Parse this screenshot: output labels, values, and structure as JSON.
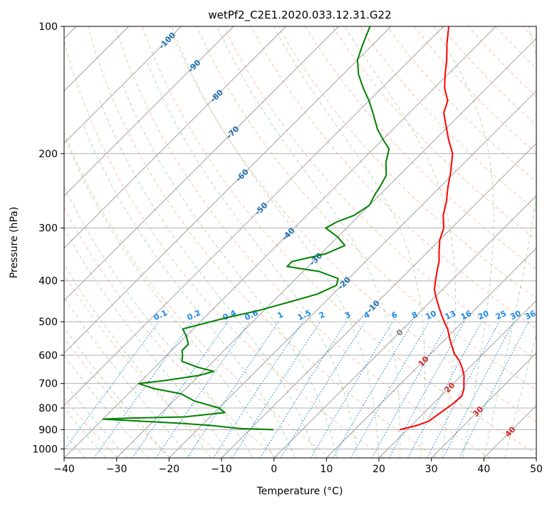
{
  "chart_data": {
    "type": "skew-t",
    "title": "wetPf2_C2E1.2020.033.12.31.G22",
    "xlabel": "Temperature (°C)",
    "ylabel": "Pressure (hPa)",
    "xlim": [
      -40,
      50
    ],
    "ylim": [
      1050,
      100
    ],
    "y_scale": "log",
    "x_ticks": [
      "−40",
      "−30",
      "−20",
      "−10",
      "0",
      "10",
      "20",
      "30",
      "40",
      "50"
    ],
    "y_ticks": [
      "100",
      "200",
      "300",
      "400",
      "500",
      "600",
      "700",
      "800",
      "900",
      "1000"
    ],
    "grid": true,
    "colors": {
      "temperature": "#ff0000",
      "dewpoint": "#008000",
      "isotherm": "#999999",
      "dry_adiabat": "#ff8a65",
      "moist_adiabat": "#66bb6a",
      "mixing_ratio": "#1e88e5",
      "label_isotherm_cold": "#1f6fb0",
      "label_isotherm_zero": "#7f7f7f",
      "label_isotherm_warm": "#d62728"
    },
    "series": [
      {
        "name": "",
        "role": "temperature",
        "points": [
          [
            900,
            18.6
          ],
          [
            880,
            21.0
          ],
          [
            860,
            22.5
          ],
          [
            840,
            22.8
          ],
          [
            810,
            23.3
          ],
          [
            780,
            23.8
          ],
          [
            750,
            24.0
          ],
          [
            720,
            23.0
          ],
          [
            700,
            22.0
          ],
          [
            670,
            20.5
          ],
          [
            640,
            18.5
          ],
          [
            615,
            16.5
          ],
          [
            595,
            14.5
          ],
          [
            570,
            12.5
          ],
          [
            545,
            10.5
          ],
          [
            520,
            8.5
          ],
          [
            500,
            6.5
          ],
          [
            480,
            4.5
          ],
          [
            460,
            2.5
          ],
          [
            440,
            0.5
          ],
          [
            420,
            -1.5
          ],
          [
            400,
            -3.0
          ],
          [
            380,
            -4.5
          ],
          [
            360,
            -6.0
          ],
          [
            340,
            -8.0
          ],
          [
            320,
            -10.0
          ],
          [
            300,
            -11.5
          ],
          [
            280,
            -14.0
          ],
          [
            260,
            -16.0
          ],
          [
            240,
            -18.5
          ],
          [
            220,
            -21.0
          ],
          [
            200,
            -24.0
          ],
          [
            185,
            -27.5
          ],
          [
            170,
            -31.0
          ],
          [
            160,
            -33.5
          ],
          [
            150,
            -35.0
          ],
          [
            140,
            -38.0
          ],
          [
            130,
            -40.5
          ],
          [
            120,
            -43.0
          ],
          [
            110,
            -46.0
          ],
          [
            100,
            -49.0
          ]
        ]
      },
      {
        "name": "",
        "role": "dewpoint",
        "points": [
          [
            900,
            -5.5
          ],
          [
            895,
            -12.0
          ],
          [
            880,
            -18.0
          ],
          [
            870,
            -24.0
          ],
          [
            860,
            -32.0
          ],
          [
            850,
            -40.0
          ],
          [
            845,
            -35.0
          ],
          [
            840,
            -25.0
          ],
          [
            820,
            -18.0
          ],
          [
            800,
            -20.0
          ],
          [
            770,
            -26.0
          ],
          [
            740,
            -30.0
          ],
          [
            720,
            -36.0
          ],
          [
            700,
            -40.0
          ],
          [
            690,
            -36.0
          ],
          [
            670,
            -30.0
          ],
          [
            655,
            -28.0
          ],
          [
            640,
            -32.0
          ],
          [
            620,
            -36.0
          ],
          [
            600,
            -37.0
          ],
          [
            585,
            -38.0
          ],
          [
            565,
            -38.0
          ],
          [
            540,
            -40.0
          ],
          [
            520,
            -42.0
          ],
          [
            510,
            -40.0
          ],
          [
            490,
            -36.0
          ],
          [
            470,
            -31.0
          ],
          [
            450,
            -27.0
          ],
          [
            430,
            -23.0
          ],
          [
            410,
            -21.0
          ],
          [
            395,
            -22.0
          ],
          [
            380,
            -27.0
          ],
          [
            370,
            -34.0
          ],
          [
            360,
            -34.0
          ],
          [
            345,
            -29.0
          ],
          [
            330,
            -27.0
          ],
          [
            315,
            -30.0
          ],
          [
            300,
            -34.0
          ],
          [
            290,
            -33.0
          ],
          [
            280,
            -31.0
          ],
          [
            265,
            -30.0
          ],
          [
            250,
            -31.0
          ],
          [
            240,
            -31.5
          ],
          [
            225,
            -32.5
          ],
          [
            210,
            -35.0
          ],
          [
            195,
            -37.0
          ],
          [
            185,
            -40.0
          ],
          [
            175,
            -43.0
          ],
          [
            160,
            -47.0
          ],
          [
            150,
            -50.0
          ],
          [
            140,
            -53.5
          ],
          [
            130,
            -57.0
          ],
          [
            120,
            -60.0
          ],
          [
            110,
            -62.0
          ],
          [
            100,
            -64.0
          ]
        ]
      }
    ],
    "isotherm_labels": [
      "-100",
      "-90",
      "-80",
      "-70",
      "-60",
      "-50",
      "-40",
      "-30",
      "-20",
      "-10",
      "0",
      "10",
      "20",
      "30",
      "40"
    ],
    "mixing_ratio_labels": [
      "0.1",
      "0.2",
      "0.4",
      "0.6",
      "1",
      "1.5",
      "2",
      "3",
      "4",
      "6",
      "8",
      "10",
      "13",
      "16",
      "20",
      "25",
      "30",
      "36"
    ],
    "mixing_ratio_values": [
      0.1,
      0.2,
      0.4,
      0.6,
      1,
      1.5,
      2,
      3,
      4,
      6,
      8,
      10,
      13,
      16,
      20,
      25,
      30,
      36
    ],
    "isotherm_label_pressures": {
      "-100": 108,
      "-90": 124,
      "-80": 146,
      "-70": 178,
      "-60": 225,
      "-50": 270,
      "-40": 310,
      "-30": 355,
      "-20": 405,
      "-10": 460,
      "0": 530,
      "10": 620,
      "20": 715,
      "30": 815,
      "40": 910
    }
  }
}
